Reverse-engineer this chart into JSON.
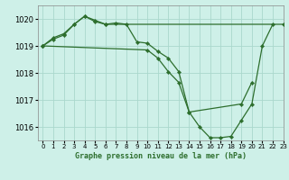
{
  "background_color": "#cef0e8",
  "grid_color": "#aad8cc",
  "line_color": "#2d6e2d",
  "marker_color": "#2d6e2d",
  "xlabel": "Graphe pression niveau de la mer (hPa)",
  "ylim": [
    1015.5,
    1020.5
  ],
  "xlim": [
    -0.5,
    23
  ],
  "yticks": [
    1016,
    1017,
    1018,
    1019,
    1020
  ],
  "xticks": [
    0,
    1,
    2,
    3,
    4,
    5,
    6,
    7,
    8,
    9,
    10,
    11,
    12,
    13,
    14,
    15,
    16,
    17,
    18,
    19,
    20,
    21,
    22,
    23
  ],
  "series": [
    {
      "x": [
        0,
        1,
        2,
        3,
        4,
        5,
        6,
        7,
        8,
        9,
        10,
        11,
        12,
        13,
        14,
        15,
        16,
        17,
        18,
        19,
        20,
        21,
        22
      ],
      "y": [
        1019.0,
        1019.3,
        1019.45,
        1019.8,
        1020.1,
        1019.9,
        1019.8,
        1019.85,
        1019.8,
        1019.15,
        1019.1,
        1018.8,
        1018.55,
        1018.05,
        1016.55,
        1016.0,
        1015.6,
        1015.6,
        1015.65,
        1016.25,
        1016.85,
        1019.0,
        1019.8
      ]
    },
    {
      "x": [
        0,
        1,
        2,
        3,
        4,
        5,
        6,
        23
      ],
      "y": [
        1019.0,
        1019.25,
        1019.4,
        1019.8,
        1020.1,
        1019.95,
        1019.8,
        1019.8
      ]
    },
    {
      "x": [
        0,
        10,
        11,
        12,
        13,
        14,
        19,
        20
      ],
      "y": [
        1019.0,
        1018.85,
        1018.55,
        1018.05,
        1017.65,
        1016.55,
        1016.85,
        1017.65
      ]
    }
  ]
}
